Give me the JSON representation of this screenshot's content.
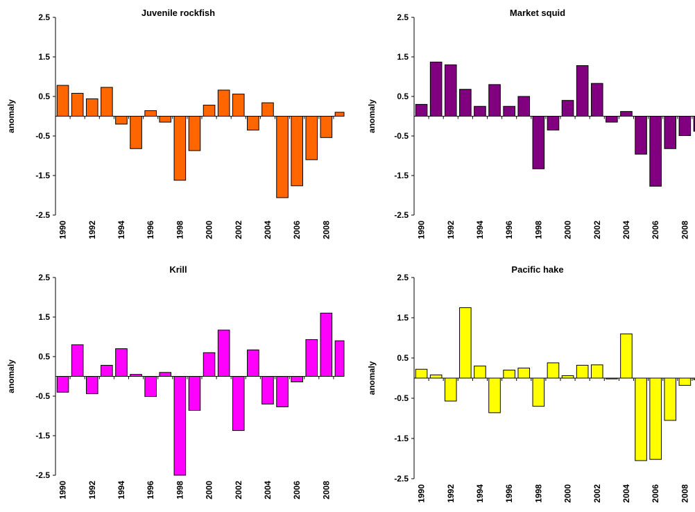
{
  "chart_data": [
    {
      "type": "bar",
      "title": "Juvenile rockfish",
      "ylabel": "anomaly",
      "ylim": [
        -2.5,
        2.5
      ],
      "yticks": [
        "2.5",
        "1.5",
        "0.5",
        "-0.5",
        "-1.5",
        "-2.5"
      ],
      "color": "#FF6600",
      "categories": [
        "1990",
        "1991",
        "1992",
        "1993",
        "1994",
        "1995",
        "1996",
        "1997",
        "1998",
        "1999",
        "2000",
        "2001",
        "2002",
        "2003",
        "2004",
        "2005",
        "2006",
        "2007",
        "2008",
        "2009"
      ],
      "xtick_labels": [
        "1990",
        "1992",
        "1994",
        "1996",
        "1998",
        "2000",
        "2002",
        "2004",
        "2006",
        "2008"
      ],
      "values": [
        0.78,
        0.58,
        0.44,
        0.73,
        -0.2,
        -0.82,
        0.14,
        -0.15,
        -1.62,
        -0.87,
        0.28,
        0.66,
        0.56,
        -0.35,
        0.34,
        -2.06,
        -1.76,
        -1.1,
        -0.54,
        0.1
      ]
    },
    {
      "type": "bar",
      "title": "Market squid",
      "ylabel": "anomaly",
      "ylim": [
        -2.5,
        2.5
      ],
      "yticks": [
        "2.5",
        "1.5",
        "0.5",
        "-0.5",
        "-1.5",
        "-2.5"
      ],
      "color": "#800080",
      "categories": [
        "1990",
        "1991",
        "1992",
        "1993",
        "1994",
        "1995",
        "1996",
        "1997",
        "1998",
        "1999",
        "2000",
        "2001",
        "2002",
        "2003",
        "2004",
        "2005",
        "2006",
        "2007",
        "2008",
        "2009"
      ],
      "xtick_labels": [
        "1990",
        "1992",
        "1994",
        "1996",
        "1998",
        "2000",
        "2002",
        "2004",
        "2006",
        "2008"
      ],
      "values": [
        0.3,
        1.37,
        1.3,
        0.68,
        0.25,
        0.8,
        0.25,
        0.5,
        -1.33,
        -0.35,
        0.4,
        1.28,
        0.83,
        -0.15,
        0.12,
        -0.96,
        -1.77,
        -0.82,
        -0.49,
        -0.38
      ]
    },
    {
      "type": "bar",
      "title": "Krill",
      "ylabel": "anomaly",
      "ylim": [
        -2.5,
        2.5
      ],
      "yticks": [
        "2.5",
        "1.5",
        "0.5",
        "-0.5",
        "-1.5",
        "-2.5"
      ],
      "color": "#FF00FF",
      "categories": [
        "1990",
        "1991",
        "1992",
        "1993",
        "1994",
        "1995",
        "1996",
        "1997",
        "1998",
        "1999",
        "2000",
        "2001",
        "2002",
        "2003",
        "2004",
        "2005",
        "2006",
        "2007",
        "2008",
        "2009"
      ],
      "xtick_labels": [
        "1990",
        "1992",
        "1994",
        "1996",
        "1998",
        "2000",
        "2002",
        "2004",
        "2006",
        "2008"
      ],
      "values": [
        -0.4,
        0.8,
        -0.44,
        0.28,
        0.7,
        0.05,
        -0.51,
        0.1,
        -2.5,
        -0.86,
        0.6,
        1.17,
        -1.37,
        0.67,
        -0.7,
        -0.77,
        -0.14,
        0.93,
        1.6,
        0.9
      ]
    },
    {
      "type": "bar",
      "title": "Pacific hake",
      "ylabel": "anomaly",
      "ylim": [
        -2.5,
        2.5
      ],
      "yticks": [
        "2.5",
        "1.5",
        "0.5",
        "-0.5",
        "-1.5",
        "-2.5"
      ],
      "color": "#FFFF00",
      "categories": [
        "1990",
        "1991",
        "1992",
        "1993",
        "1994",
        "1995",
        "1996",
        "1997",
        "1998",
        "1999",
        "2000",
        "2001",
        "2002",
        "2003",
        "2004",
        "2005",
        "2006",
        "2007",
        "2008",
        "2009"
      ],
      "xtick_labels": [
        "1990",
        "1992",
        "1994",
        "1996",
        "1998",
        "2000",
        "2002",
        "2004",
        "2006",
        "2008"
      ],
      "values": [
        0.22,
        0.08,
        -0.57,
        1.75,
        0.3,
        -0.86,
        0.2,
        0.25,
        -0.7,
        0.38,
        0.06,
        0.32,
        0.33,
        -0.02,
        1.1,
        -2.05,
        -2.02,
        -1.05,
        -0.18,
        -0.04
      ]
    }
  ]
}
